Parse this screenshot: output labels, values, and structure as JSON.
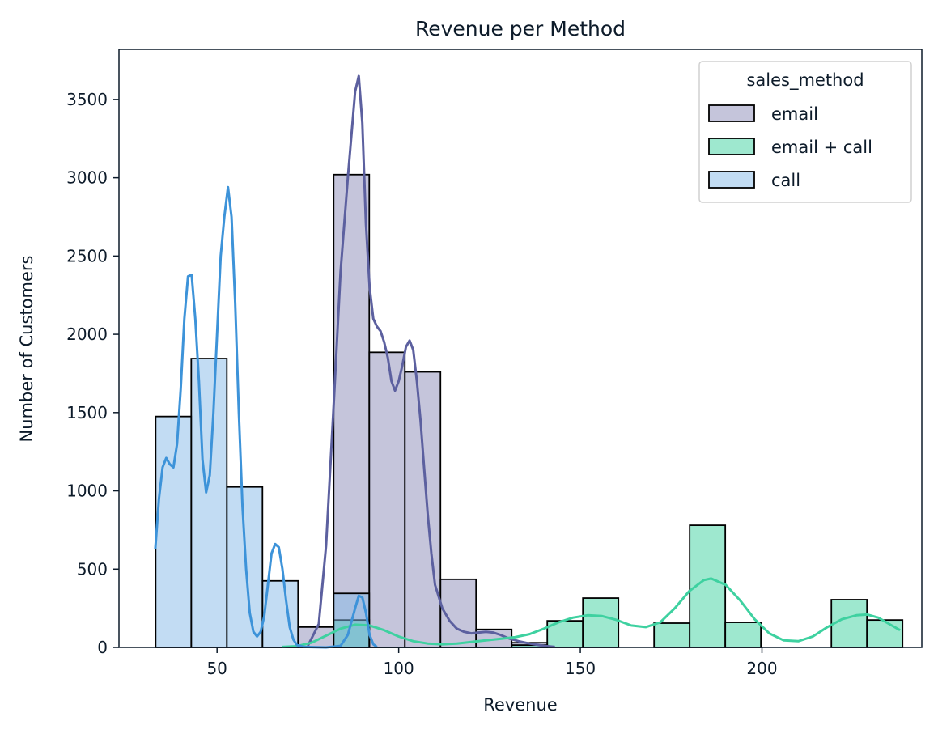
{
  "chart_data": {
    "type": "histogram",
    "title": "Revenue per Method",
    "xlabel": "Revenue",
    "ylabel": "Number of Customers",
    "xlim": [
      23,
      244
    ],
    "ylim": [
      0,
      3820
    ],
    "xticks": [
      50,
      100,
      150,
      200
    ],
    "yticks": [
      0,
      500,
      1000,
      1500,
      2000,
      2500,
      3000,
      3500
    ],
    "grid": false,
    "legend": {
      "title": "sales_method",
      "placement": "top-right",
      "entries": [
        "email",
        "email + call",
        "call"
      ]
    },
    "bin_width": 9.8,
    "series": [
      {
        "name": "email",
        "color": "#8c8cb8",
        "kde_color": "#5c609f",
        "bins": [
          {
            "x0": 72.3,
            "x1": 82.1,
            "count": 130
          },
          {
            "x0": 82.1,
            "x1": 91.9,
            "count": 3020
          },
          {
            "x0": 91.9,
            "x1": 101.7,
            "count": 1885
          },
          {
            "x0": 101.7,
            "x1": 111.5,
            "count": 1760
          },
          {
            "x0": 111.5,
            "x1": 121.3,
            "count": 435
          },
          {
            "x0": 121.3,
            "x1": 131.1,
            "count": 115
          },
          {
            "x0": 131.1,
            "x1": 140.9,
            "count": 30
          }
        ],
        "kde": [
          [
            75,
            10
          ],
          [
            78,
            150
          ],
          [
            80,
            650
          ],
          [
            82,
            1500
          ],
          [
            84,
            2400
          ],
          [
            86,
            3000
          ],
          [
            88,
            3550
          ],
          [
            89,
            3650
          ],
          [
            90,
            3350
          ],
          [
            91,
            2700
          ],
          [
            92,
            2300
          ],
          [
            93,
            2100
          ],
          [
            94,
            2050
          ],
          [
            95,
            2020
          ],
          [
            96,
            1950
          ],
          [
            97,
            1850
          ],
          [
            98,
            1700
          ],
          [
            99,
            1640
          ],
          [
            100,
            1700
          ],
          [
            101,
            1800
          ],
          [
            102,
            1920
          ],
          [
            103,
            1960
          ],
          [
            104,
            1900
          ],
          [
            105,
            1700
          ],
          [
            106,
            1450
          ],
          [
            107,
            1150
          ],
          [
            108,
            850
          ],
          [
            109,
            600
          ],
          [
            110,
            400
          ],
          [
            112,
            250
          ],
          [
            114,
            170
          ],
          [
            116,
            120
          ],
          [
            118,
            100
          ],
          [
            120,
            90
          ],
          [
            122,
            95
          ],
          [
            124,
            100
          ],
          [
            126,
            95
          ],
          [
            128,
            80
          ],
          [
            130,
            60
          ],
          [
            133,
            40
          ],
          [
            136,
            25
          ],
          [
            140,
            10
          ],
          [
            143,
            3
          ]
        ]
      },
      {
        "name": "email + call",
        "color": "#3ed1a0",
        "kde_color": "#3ed1a0",
        "bins": [
          {
            "x0": 82.1,
            "x1": 91.9,
            "count": 175
          },
          {
            "x0": 131.1,
            "x1": 140.9,
            "count": 15
          },
          {
            "x0": 140.9,
            "x1": 150.7,
            "count": 170
          },
          {
            "x0": 150.7,
            "x1": 160.5,
            "count": 315
          },
          {
            "x0": 170.3,
            "x1": 180.1,
            "count": 155
          },
          {
            "x0": 180.1,
            "x1": 189.9,
            "count": 780
          },
          {
            "x0": 189.9,
            "x1": 199.7,
            "count": 160
          },
          {
            "x0": 219.1,
            "x1": 228.9,
            "count": 305
          },
          {
            "x0": 228.9,
            "x1": 238.7,
            "count": 175
          }
        ],
        "kde": [
          [
            68,
            3
          ],
          [
            72,
            8
          ],
          [
            76,
            30
          ],
          [
            80,
            75
          ],
          [
            84,
            120
          ],
          [
            88,
            145
          ],
          [
            92,
            140
          ],
          [
            96,
            110
          ],
          [
            100,
            70
          ],
          [
            104,
            40
          ],
          [
            108,
            25
          ],
          [
            112,
            20
          ],
          [
            116,
            25
          ],
          [
            120,
            35
          ],
          [
            124,
            45
          ],
          [
            128,
            55
          ],
          [
            132,
            65
          ],
          [
            136,
            85
          ],
          [
            140,
            120
          ],
          [
            144,
            160
          ],
          [
            148,
            190
          ],
          [
            152,
            205
          ],
          [
            156,
            200
          ],
          [
            160,
            175
          ],
          [
            164,
            140
          ],
          [
            168,
            130
          ],
          [
            172,
            160
          ],
          [
            176,
            250
          ],
          [
            180,
            360
          ],
          [
            184,
            430
          ],
          [
            186,
            440
          ],
          [
            190,
            400
          ],
          [
            194,
            300
          ],
          [
            198,
            180
          ],
          [
            202,
            90
          ],
          [
            206,
            45
          ],
          [
            210,
            40
          ],
          [
            214,
            70
          ],
          [
            218,
            130
          ],
          [
            222,
            180
          ],
          [
            226,
            205
          ],
          [
            229,
            210
          ],
          [
            232,
            190
          ],
          [
            235,
            150
          ],
          [
            238,
            110
          ]
        ]
      },
      {
        "name": "call",
        "color": "#85b9e8",
        "kde_color": "#3d93d9",
        "bins": [
          {
            "x0": 33.1,
            "x1": 42.9,
            "count": 1475
          },
          {
            "x0": 42.9,
            "x1": 52.7,
            "count": 1845
          },
          {
            "x0": 52.7,
            "x1": 62.5,
            "count": 1025
          },
          {
            "x0": 62.5,
            "x1": 72.3,
            "count": 425
          },
          {
            "x0": 82.1,
            "x1": 91.9,
            "count": 345
          }
        ],
        "kde": [
          [
            33,
            630
          ],
          [
            34,
            950
          ],
          [
            35,
            1150
          ],
          [
            36,
            1210
          ],
          [
            37,
            1170
          ],
          [
            38,
            1150
          ],
          [
            39,
            1300
          ],
          [
            40,
            1650
          ],
          [
            41,
            2100
          ],
          [
            42,
            2370
          ],
          [
            43,
            2380
          ],
          [
            44,
            2100
          ],
          [
            45,
            1700
          ],
          [
            46,
            1200
          ],
          [
            47,
            990
          ],
          [
            48,
            1100
          ],
          [
            49,
            1500
          ],
          [
            50,
            2000
          ],
          [
            51,
            2500
          ],
          [
            52,
            2750
          ],
          [
            53,
            2940
          ],
          [
            54,
            2750
          ],
          [
            55,
            2200
          ],
          [
            56,
            1500
          ],
          [
            57,
            900
          ],
          [
            58,
            500
          ],
          [
            59,
            220
          ],
          [
            60,
            100
          ],
          [
            61,
            70
          ],
          [
            62,
            100
          ],
          [
            63,
            200
          ],
          [
            64,
            400
          ],
          [
            65,
            600
          ],
          [
            66,
            660
          ],
          [
            67,
            640
          ],
          [
            68,
            500
          ],
          [
            69,
            300
          ],
          [
            70,
            130
          ],
          [
            71,
            50
          ],
          [
            72,
            15
          ],
          [
            74,
            3
          ],
          [
            80,
            0
          ],
          [
            84,
            10
          ],
          [
            86,
            80
          ],
          [
            88,
            250
          ],
          [
            89,
            330
          ],
          [
            90,
            320
          ],
          [
            91,
            220
          ],
          [
            92,
            80
          ],
          [
            93,
            20
          ],
          [
            94,
            3
          ]
        ]
      }
    ]
  }
}
